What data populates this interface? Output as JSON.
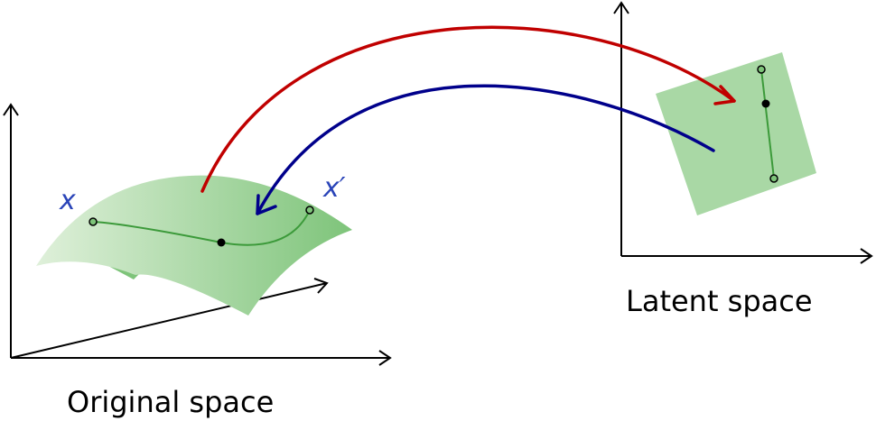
{
  "labels": {
    "original_space": "Original space",
    "latent_space": "Latent space",
    "x": "x",
    "x_prime": "x′"
  },
  "colors": {
    "manifold_light": "#dff0da",
    "manifold_dark": "#7ec47a",
    "latent_plane": "#a9d8a5",
    "curve": "#3c9a3a",
    "encoder_arrow": "#c00000",
    "decoder_arrow": "#00008b",
    "label_blue": "#2a44b8",
    "axes": "#000000"
  }
}
